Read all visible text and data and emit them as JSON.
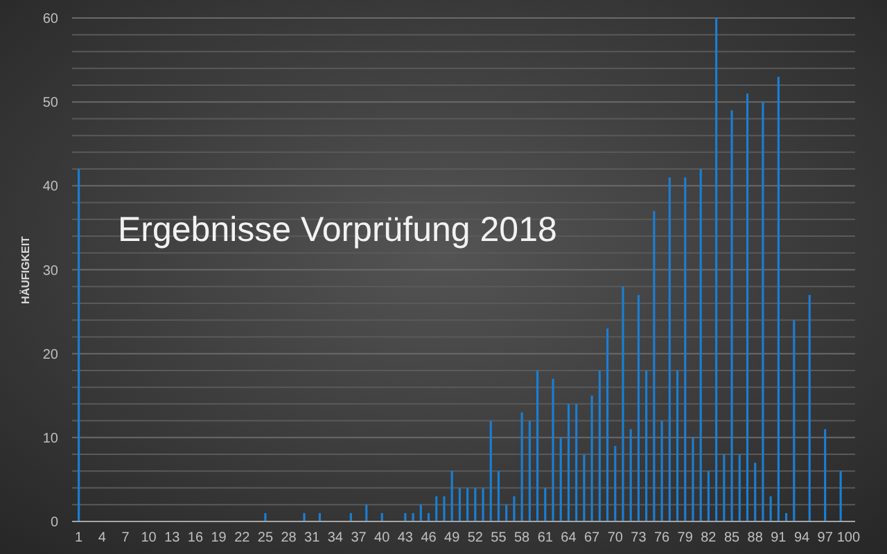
{
  "chart_data": {
    "type": "bar",
    "title": "Ergebnisse Vorprüfung 2018",
    "ylabel": "HÄUFIGKEIT",
    "categories": [
      "1",
      null,
      null,
      "4",
      null,
      null,
      "7",
      null,
      null,
      "10",
      null,
      null,
      "13",
      null,
      null,
      "16",
      null,
      null,
      "19",
      null,
      null,
      "22",
      null,
      null,
      "25",
      null,
      null,
      "28",
      null,
      null,
      "31",
      null,
      null,
      "34",
      null,
      null,
      "37",
      null,
      null,
      "40",
      null,
      null,
      "43",
      null,
      null,
      "46",
      null,
      null,
      "49",
      null,
      null,
      "52",
      null,
      null,
      "55",
      null,
      null,
      "58",
      null,
      null,
      "61",
      null,
      null,
      "64",
      null,
      null,
      "67",
      null,
      null,
      "70",
      null,
      null,
      "73",
      null,
      null,
      "76",
      null,
      null,
      "79",
      null,
      null,
      "82",
      null,
      null,
      "85",
      null,
      null,
      "88",
      null,
      null,
      "91",
      null,
      null,
      "94",
      null,
      null,
      "97",
      null,
      null,
      "100"
    ],
    "values": [
      42,
      0,
      0,
      0,
      0,
      0,
      0,
      0,
      0,
      0,
      0,
      0,
      0,
      0,
      0,
      0,
      0,
      0,
      0,
      0,
      0,
      0,
      0,
      0,
      1,
      0,
      0,
      0,
      0,
      1,
      0,
      1,
      0,
      0,
      0,
      1,
      0,
      2,
      0,
      1,
      0,
      0,
      1,
      1,
      2,
      1,
      3,
      3,
      6,
      4,
      4,
      4,
      4,
      12,
      6,
      2,
      3,
      13,
      12,
      18,
      4,
      17,
      10,
      14,
      14,
      8,
      15,
      18,
      23,
      9,
      28,
      11,
      27,
      18,
      37,
      12,
      41,
      18,
      41,
      10,
      42,
      6,
      60,
      8,
      49,
      8,
      51,
      7,
      50,
      3,
      53,
      1,
      24,
      0,
      27,
      0,
      11,
      0,
      6,
      0
    ],
    "color": "#1a7fd4",
    "ylim": [
      0,
      60
    ],
    "yticks": [
      0,
      {
        "value": 2,
        "label": null
      },
      {
        "value": 4,
        "label": null
      },
      {
        "value": 6,
        "label": null
      },
      {
        "value": 8,
        "label": null
      },
      10,
      {
        "value": 12,
        "label": null
      },
      {
        "value": 14,
        "label": null
      },
      {
        "value": 16,
        "label": null
      },
      {
        "value": 18,
        "label": null
      },
      20,
      {
        "value": 22,
        "label": null
      },
      {
        "value": 24,
        "label": null
      },
      {
        "value": 26,
        "label": null
      },
      {
        "value": 28,
        "label": null
      },
      30,
      {
        "value": 32,
        "label": null
      },
      {
        "value": 34,
        "label": null
      },
      {
        "value": 36,
        "label": null
      },
      {
        "value": 38,
        "label": null
      },
      40,
      {
        "value": 42,
        "label": null
      },
      {
        "value": 44,
        "label": null
      },
      {
        "value": 46,
        "label": null
      },
      {
        "value": 48,
        "label": null
      },
      50,
      {
        "value": 52,
        "label": null
      },
      {
        "value": 54,
        "label": null
      },
      {
        "value": 56,
        "label": null
      },
      {
        "value": 58,
        "label": null
      },
      60
    ],
    "grid": "y"
  }
}
